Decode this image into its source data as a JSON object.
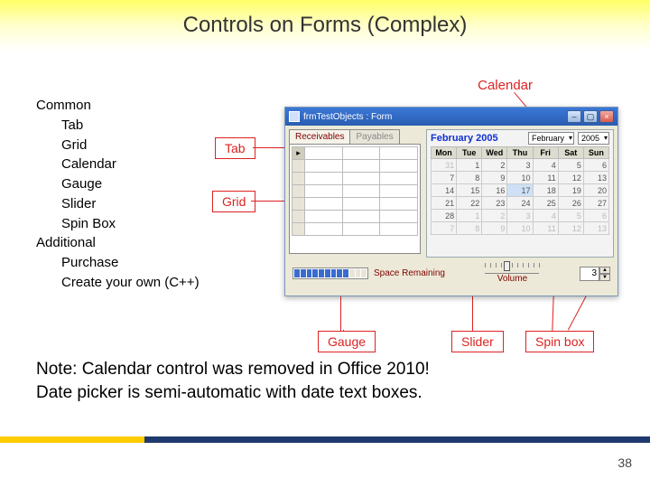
{
  "title": "Controls on Forms (Complex)",
  "list": {
    "common_header": "Common",
    "common_items": [
      "Tab",
      "Grid",
      "Calendar",
      "Gauge",
      "Slider",
      "Spin Box"
    ],
    "additional_header": "Additional",
    "additional_items": [
      "Purchase",
      "Create your own (C++)"
    ]
  },
  "callouts": {
    "calendar": "Calendar",
    "tab": "Tab",
    "grid": "Grid",
    "gauge": "Gauge",
    "slider": "Slider",
    "spinbox": "Spin box"
  },
  "form": {
    "window_title": "frmTestObjects : Form",
    "tabs": [
      "Receivables",
      "Payables"
    ],
    "grid_rows": 7,
    "calendar": {
      "month_label": "February 2005",
      "month_select": "February",
      "year_select": "2005",
      "dow": [
        "Mon",
        "Tue",
        "Wed",
        "Thu",
        "Fri",
        "Sat",
        "Sun"
      ],
      "cells": [
        [
          {
            "v": "31",
            "dim": true
          },
          {
            "v": "1"
          },
          {
            "v": "2"
          },
          {
            "v": "3"
          },
          {
            "v": "4"
          },
          {
            "v": "5"
          },
          {
            "v": "6"
          }
        ],
        [
          {
            "v": "7"
          },
          {
            "v": "8"
          },
          {
            "v": "9"
          },
          {
            "v": "10"
          },
          {
            "v": "11"
          },
          {
            "v": "12"
          },
          {
            "v": "13"
          }
        ],
        [
          {
            "v": "14"
          },
          {
            "v": "15"
          },
          {
            "v": "16"
          },
          {
            "v": "17",
            "hi": true
          },
          {
            "v": "18"
          },
          {
            "v": "19"
          },
          {
            "v": "20"
          }
        ],
        [
          {
            "v": "21"
          },
          {
            "v": "22"
          },
          {
            "v": "23"
          },
          {
            "v": "24"
          },
          {
            "v": "25"
          },
          {
            "v": "26"
          },
          {
            "v": "27"
          }
        ],
        [
          {
            "v": "28"
          },
          {
            "v": "1",
            "dim": true
          },
          {
            "v": "2",
            "dim": true
          },
          {
            "v": "3",
            "dim": true
          },
          {
            "v": "4",
            "dim": true
          },
          {
            "v": "5",
            "dim": true
          },
          {
            "v": "6",
            "dim": true
          }
        ],
        [
          {
            "v": "7",
            "dim": true
          },
          {
            "v": "8",
            "dim": true
          },
          {
            "v": "9",
            "dim": true
          },
          {
            "v": "10",
            "dim": true
          },
          {
            "v": "11",
            "dim": true
          },
          {
            "v": "12",
            "dim": true
          },
          {
            "v": "13",
            "dim": true
          }
        ]
      ]
    },
    "gauge_label": "Space Remaining",
    "gauge_segments_on": 9,
    "gauge_segments_total": 12,
    "slider_label": "Volume",
    "slider_ticks": 11,
    "slider_pos_pct": 40,
    "spin_value": "3"
  },
  "note_line1": "Note: Calendar control was removed in Office 2010!",
  "note_line2": "Date picker is semi-automatic with date text boxes.",
  "page_number": "38",
  "colors": {
    "accent_red": "#d22",
    "title_band_top": "#ffff66",
    "footer_yellow": "#ffcc00",
    "footer_navy": "#1e3a6e",
    "cal_title_blue": "#1030d0",
    "maroon": "#800000"
  }
}
